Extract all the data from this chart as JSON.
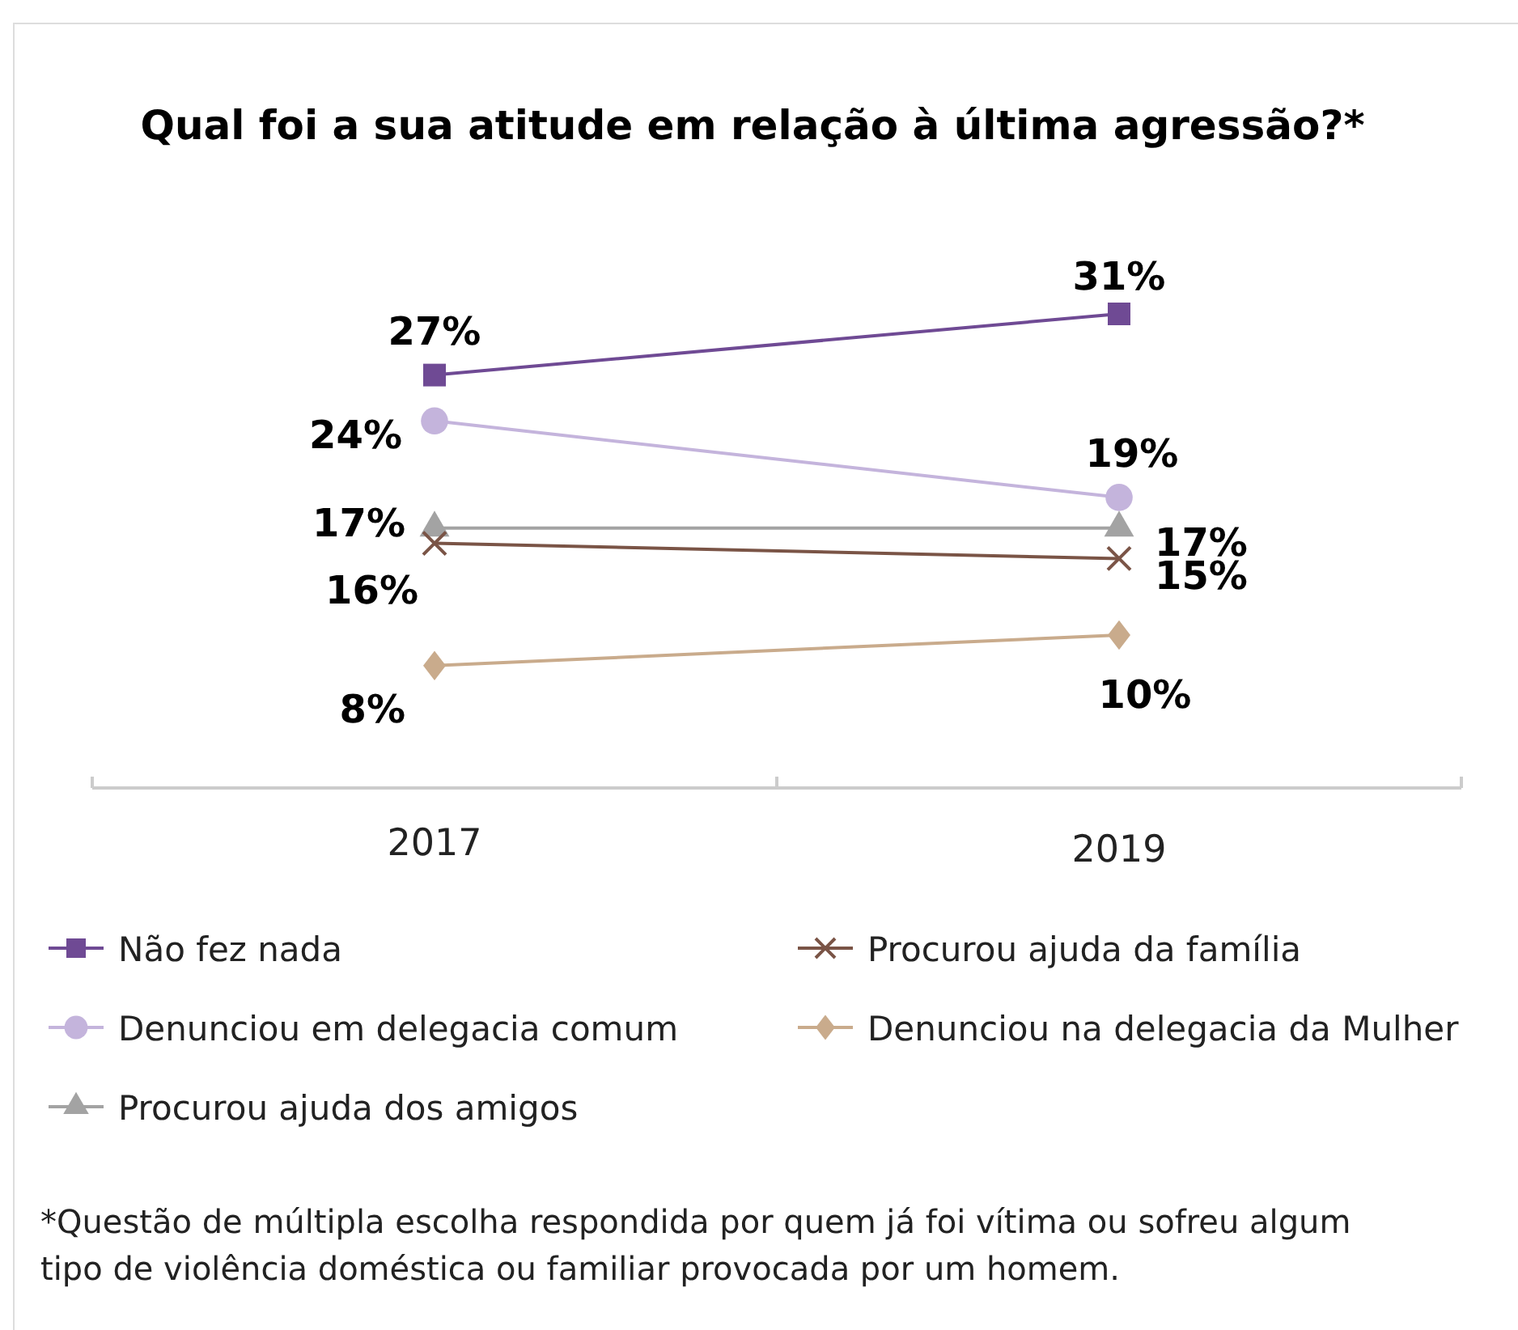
{
  "chart_data": {
    "type": "line",
    "title": "Qual foi a sua atitude em relação à última agressão?*",
    "categories": [
      "2017",
      "2019"
    ],
    "legend": "bottom",
    "series": [
      {
        "name": "Não fez nada",
        "color": "#6f4a94",
        "marker": "square",
        "values": [
          27,
          31
        ],
        "value_labels": [
          "27%",
          "31%"
        ]
      },
      {
        "name": "Denunciou em delegacia comum",
        "color": "#c4b4dc",
        "marker": "circle",
        "values": [
          24,
          19
        ],
        "value_labels": [
          "24%",
          "19%"
        ]
      },
      {
        "name": "Procurou ajuda dos amigos",
        "color": "#a3a3a3",
        "marker": "triangle",
        "values": [
          17,
          17
        ],
        "value_labels": [
          "17%",
          "17%"
        ]
      },
      {
        "name": "Procurou ajuda da família",
        "color": "#7a5446",
        "marker": "cross",
        "values": [
          16,
          15
        ],
        "value_labels": [
          "16%",
          "15%"
        ]
      },
      {
        "name": "Denunciou na delegacia da Mulher",
        "color": "#c9ab8c",
        "marker": "diamond",
        "values": [
          8,
          10
        ],
        "value_labels": [
          "8%",
          "10%"
        ]
      }
    ],
    "annotations": [
      "*Questão de múltipla escolha respondida por quem já foi vítima ou sofreu algum tipo de violência doméstica ou familiar provocada por um homem."
    ]
  }
}
